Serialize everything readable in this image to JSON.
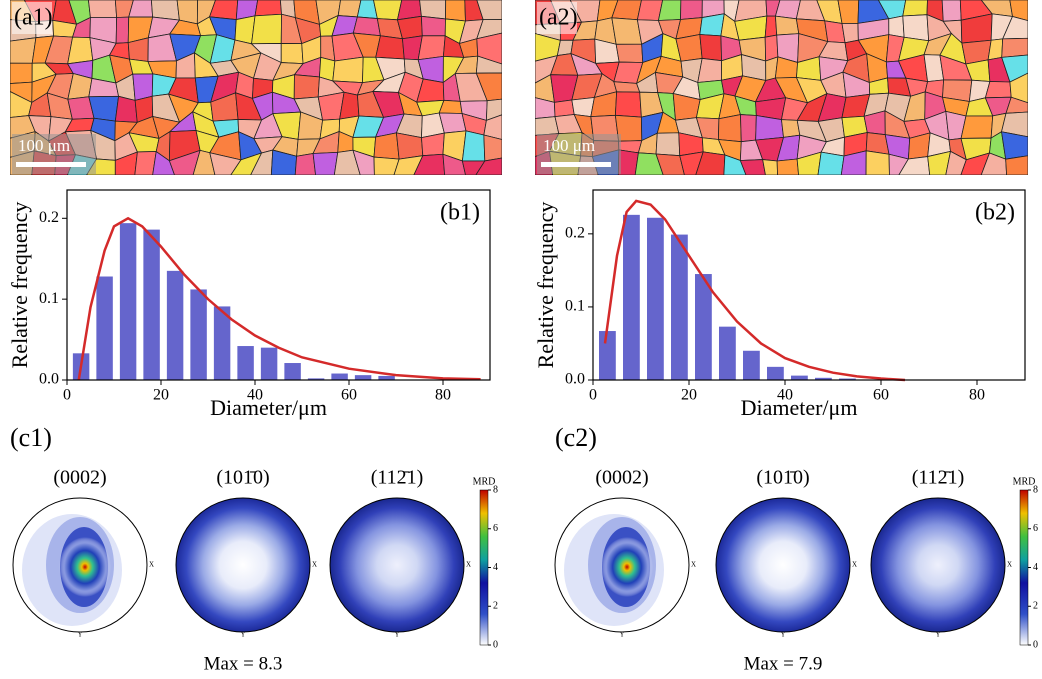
{
  "maps": [
    {
      "label": "(a1)",
      "scale_bar": "100 μm"
    },
    {
      "label": "(a2)",
      "scale_bar": "100 μm"
    }
  ],
  "chart_data": [
    {
      "type": "bar",
      "title": "(b1)",
      "x_label": "Diameter/μm",
      "y_label": "Relative frequency",
      "color": "#6565cc",
      "x": [
        3,
        8,
        13,
        18,
        23,
        28,
        33,
        38,
        43,
        48,
        53,
        58,
        63,
        68
      ],
      "values": [
        0.033,
        0.128,
        0.194,
        0.186,
        0.135,
        0.112,
        0.091,
        0.042,
        0.04,
        0.021,
        0.002,
        0.008,
        0.006,
        0.005
      ],
      "bar_width": 3.5,
      "fit": {
        "color": "#d42a2a",
        "x": [
          2.5,
          5,
          8,
          10,
          13,
          16,
          20,
          25,
          30,
          35,
          40,
          45,
          50,
          60,
          70,
          80,
          88
        ],
        "values": [
          0.0,
          0.09,
          0.16,
          0.19,
          0.2,
          0.19,
          0.165,
          0.13,
          0.1,
          0.075,
          0.055,
          0.04,
          0.028,
          0.014,
          0.006,
          0.002,
          0.001
        ]
      },
      "xlim": [
        0,
        90
      ],
      "ylim": [
        0,
        0.235
      ],
      "xticks": [
        0,
        20,
        40,
        60,
        80
      ],
      "yticks": [
        {
          "value": 0,
          "label": "0.0"
        },
        0.1,
        0.2
      ]
    },
    {
      "type": "bar",
      "title": "(b2)",
      "x_label": "Diameter/μm",
      "y_label": "Relative frequency",
      "color": "#6565cc",
      "x": [
        3,
        8,
        13,
        18,
        23,
        28,
        33,
        38,
        43,
        48,
        53
      ],
      "values": [
        0.067,
        0.226,
        0.222,
        0.199,
        0.145,
        0.073,
        0.04,
        0.018,
        0.006,
        0.003,
        0.002
      ],
      "bar_width": 3.5,
      "fit": {
        "color": "#d42a2a",
        "x": [
          2.5,
          5,
          7,
          9,
          12,
          15,
          20,
          25,
          30,
          35,
          40,
          45,
          50,
          55,
          60,
          65
        ],
        "values": [
          0.05,
          0.17,
          0.23,
          0.245,
          0.24,
          0.22,
          0.17,
          0.12,
          0.08,
          0.05,
          0.03,
          0.018,
          0.01,
          0.005,
          0.002,
          0.0
        ]
      },
      "xlim": [
        0,
        90
      ],
      "ylim": [
        0,
        0.26
      ],
      "xticks": [
        0,
        20,
        40,
        60,
        80
      ],
      "yticks": [
        {
          "value": 0,
          "label": "0.0"
        },
        0.1,
        0.2
      ]
    }
  ],
  "pole_figures": [
    {
      "label": "(c1)",
      "titles": [
        "(0002)",
        "(101̄0)",
        "(112̄1)"
      ],
      "max": "Max = 8.3"
    },
    {
      "label": "(c2)",
      "titles": [
        "(0002)",
        "(101̄0)",
        "(112̄1)"
      ],
      "max": "Max = 7.9"
    }
  ],
  "pole_axes": [
    "X",
    "Y"
  ],
  "colorbar": {
    "title": "MRD",
    "lim": [
      0,
      8
    ],
    "ticks": [
      0,
      2,
      4,
      6,
      8
    ]
  }
}
